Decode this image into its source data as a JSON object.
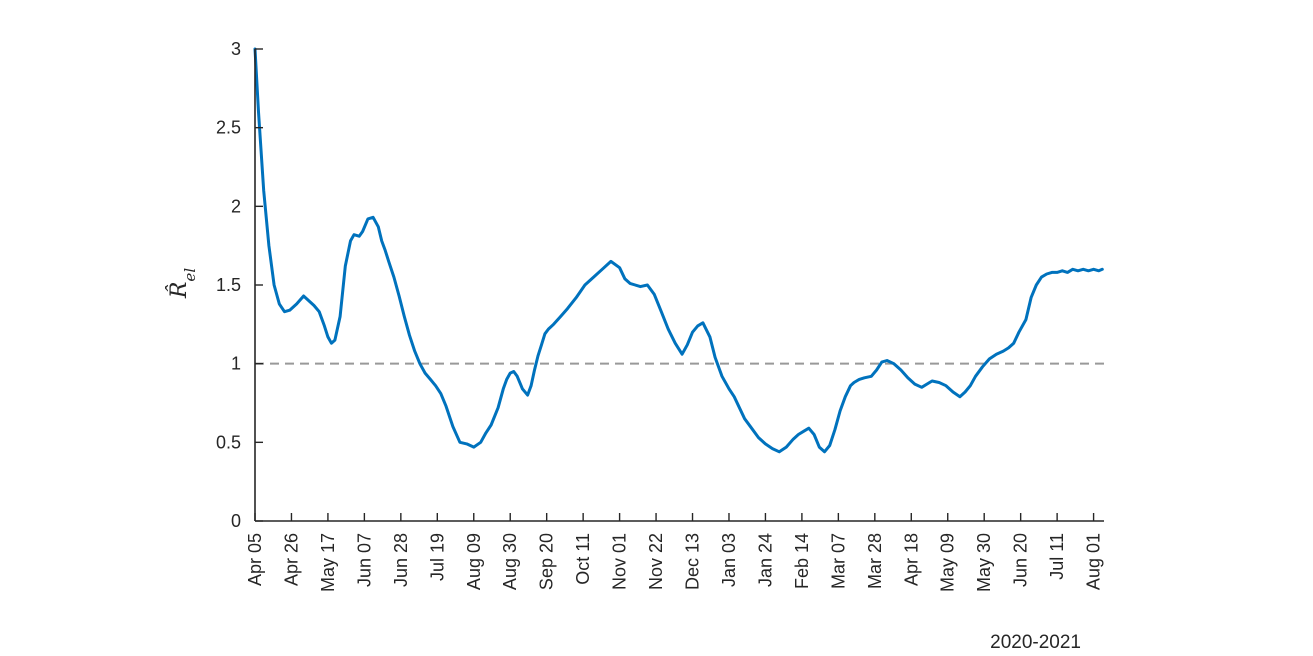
{
  "chart_data": {
    "type": "line",
    "ylabel": "R̂el",
    "ylabel_main": "R̂",
    "ylabel_sub": "el",
    "xaxis_caption": "2020-2021",
    "ylim": [
      0,
      3
    ],
    "yticks": [
      0,
      0.5,
      1,
      1.5,
      2,
      2.5,
      3
    ],
    "ytick_labels": [
      "0",
      "0.5",
      "1",
      "1.5",
      "2",
      "2.5",
      "3"
    ],
    "xlim_days": [
      0,
      1000
    ],
    "xticks_days": [
      0,
      21,
      42,
      63,
      84,
      105,
      126,
      147,
      168,
      189,
      210,
      231,
      252,
      273,
      294,
      315,
      336,
      357,
      378,
      399,
      420,
      441,
      462,
      483
    ],
    "xtick_labels": [
      "Apr 05",
      "Apr 26",
      "May 17",
      "Jun 07",
      "Jun 28",
      "Jul 19",
      "Aug 09",
      "Aug 30",
      "Sep 20",
      "Oct 11",
      "Nov 01",
      "Nov 22",
      "Dec 13",
      "Jan 03",
      "Jan 24",
      "Feb 14",
      "Mar 07",
      "Mar 28",
      "Apr 18",
      "May 09",
      "May 30",
      "Jun 20",
      "Jul 11",
      "Aug 01"
    ],
    "reference_line": {
      "y": 1,
      "style": "dashed",
      "color": "#999999"
    },
    "series": [
      {
        "color": "#0072BD",
        "x": [
          0,
          2,
          5,
          8,
          11,
          14,
          17,
          20,
          24,
          28,
          31,
          34,
          37,
          40,
          42,
          44,
          46,
          49,
          52,
          55,
          57,
          60,
          62,
          65,
          68,
          71,
          73,
          75,
          77,
          80,
          83,
          86,
          89,
          92,
          95,
          98,
          101,
          104,
          107,
          110,
          114,
          118,
          122,
          126,
          130,
          133,
          136,
          140,
          143,
          145,
          147,
          149,
          151,
          154,
          157,
          159,
          161,
          163,
          165,
          167,
          169,
          172,
          176,
          180,
          185,
          190,
          195,
          200,
          205,
          210,
          213,
          216,
          219,
          222,
          226,
          230,
          234,
          238,
          242,
          246,
          249,
          252,
          255,
          258,
          262,
          265,
          269,
          273,
          276,
          279,
          282,
          286,
          290,
          294,
          298,
          302,
          306,
          310,
          313,
          316,
          319,
          322,
          325,
          328,
          331,
          334,
          337,
          340,
          343,
          345,
          348,
          351,
          355,
          358,
          361,
          364,
          368,
          372,
          376,
          380,
          384,
          387,
          390,
          394,
          398,
          402,
          406,
          409,
          412,
          415,
          419,
          423,
          427,
          431,
          434,
          437,
          440,
          444,
          447,
          450,
          453,
          456,
          459,
          462,
          465,
          468,
          471,
          474,
          477,
          480,
          483,
          486,
          488
        ],
        "y": [
          3.0,
          2.6,
          2.1,
          1.75,
          1.5,
          1.38,
          1.33,
          1.34,
          1.38,
          1.43,
          1.4,
          1.37,
          1.33,
          1.24,
          1.17,
          1.13,
          1.15,
          1.3,
          1.62,
          1.78,
          1.82,
          1.81,
          1.84,
          1.92,
          1.93,
          1.87,
          1.78,
          1.72,
          1.65,
          1.55,
          1.43,
          1.3,
          1.18,
          1.08,
          1.0,
          0.94,
          0.9,
          0.86,
          0.81,
          0.73,
          0.6,
          0.5,
          0.49,
          0.47,
          0.5,
          0.56,
          0.61,
          0.72,
          0.84,
          0.9,
          0.94,
          0.95,
          0.92,
          0.84,
          0.8,
          0.86,
          0.96,
          1.05,
          1.12,
          1.19,
          1.22,
          1.25,
          1.3,
          1.35,
          1.42,
          1.5,
          1.55,
          1.6,
          1.65,
          1.61,
          1.54,
          1.51,
          1.5,
          1.49,
          1.5,
          1.44,
          1.33,
          1.22,
          1.13,
          1.06,
          1.12,
          1.2,
          1.24,
          1.26,
          1.17,
          1.04,
          0.92,
          0.84,
          0.79,
          0.72,
          0.65,
          0.59,
          0.53,
          0.49,
          0.46,
          0.44,
          0.47,
          0.52,
          0.55,
          0.57,
          0.59,
          0.55,
          0.47,
          0.44,
          0.48,
          0.58,
          0.7,
          0.79,
          0.86,
          0.88,
          0.9,
          0.91,
          0.92,
          0.96,
          1.01,
          1.02,
          1.0,
          0.96,
          0.91,
          0.87,
          0.85,
          0.87,
          0.89,
          0.88,
          0.86,
          0.82,
          0.79,
          0.82,
          0.86,
          0.92,
          0.98,
          1.03,
          1.06,
          1.08,
          1.1,
          1.13,
          1.2,
          1.28,
          1.42,
          1.5,
          1.55,
          1.57,
          1.58,
          1.58,
          1.59,
          1.58,
          1.6,
          1.59,
          1.6,
          1.59,
          1.6,
          1.59,
          1.6
        ]
      }
    ]
  }
}
